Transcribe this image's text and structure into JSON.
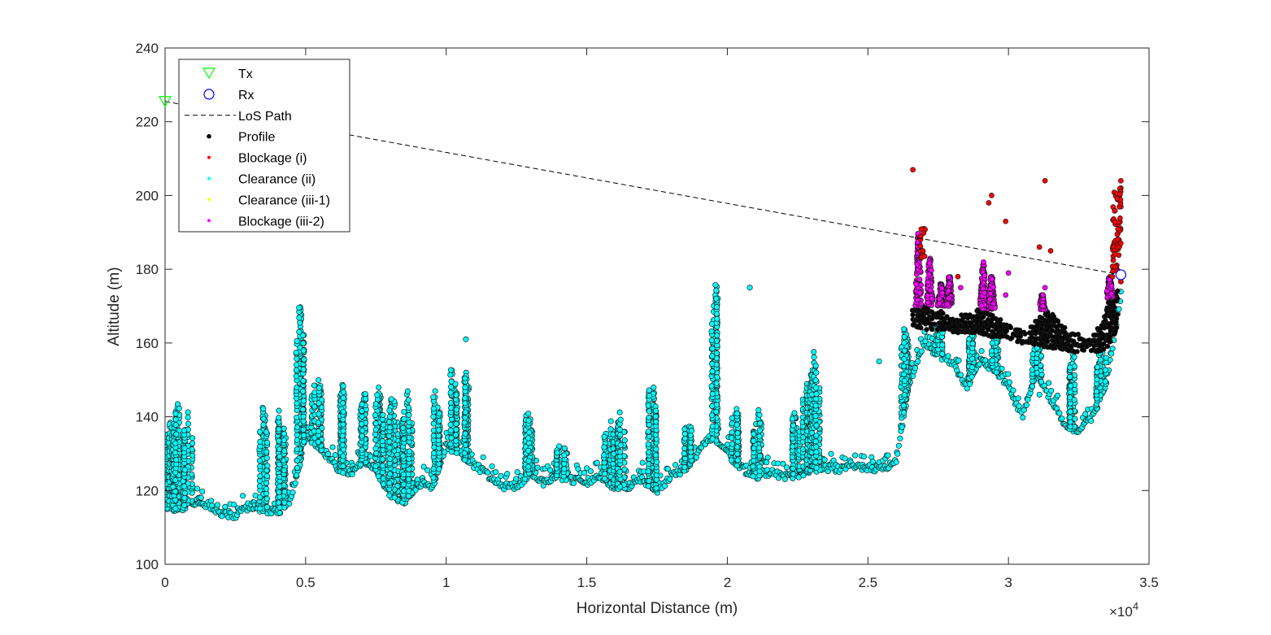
{
  "chart_data": {
    "type": "scatter",
    "xlabel": "Horizontal Distance (m)",
    "ylabel": "Altitude (m)",
    "x_multiplier_label": "×10",
    "x_multiplier_exponent": "4",
    "xlim": [
      0,
      35000
    ],
    "ylim": [
      100,
      240
    ],
    "x_tick_values": [
      0,
      5000,
      10000,
      15000,
      20000,
      25000,
      30000,
      35000
    ],
    "x_tick_labels": [
      "0",
      "0.5",
      "1",
      "1.5",
      "2",
      "2.5",
      "3",
      "3.5"
    ],
    "y_tick_values": [
      100,
      120,
      140,
      160,
      180,
      200,
      220,
      240
    ],
    "y_tick_labels": [
      "100",
      "120",
      "140",
      "160",
      "180",
      "200",
      "220",
      "240"
    ],
    "grid": false,
    "legend_position": "top-left",
    "tx": {
      "x": 0,
      "y": 225.5
    },
    "rx": {
      "x": 34000,
      "y": 178.5
    },
    "los_path": {
      "x": [
        0,
        34000
      ],
      "y": [
        225.5,
        178.5
      ]
    },
    "legend": [
      {
        "key": "tx",
        "label": "Tx",
        "marker": "triangle-down",
        "color": "#00ff00"
      },
      {
        "key": "rx",
        "label": "Rx",
        "marker": "circle-open",
        "color": "#0000ff"
      },
      {
        "key": "los",
        "label": "LoS Path",
        "marker": "dashed-line",
        "color": "#000000"
      },
      {
        "key": "profile",
        "label": "Profile",
        "marker": "dot",
        "color": "#000000"
      },
      {
        "key": "block_i",
        "label": "Blockage (i)",
        "marker": "dot",
        "color": "#ff0000"
      },
      {
        "key": "clear_ii",
        "label": "Clearance (ii)",
        "marker": "dot",
        "color": "#00ffff"
      },
      {
        "key": "clear_iii1",
        "label": "Clearance (iii-1)",
        "marker": "dot",
        "color": "#ffff00"
      },
      {
        "key": "block_iii2",
        "label": "Blockage (iii-2)",
        "marker": "dot",
        "color": "#ff00ff"
      }
    ],
    "terrain_baseline": {
      "x": [
        0,
        500,
        1000,
        1500,
        2000,
        2500,
        3000,
        3500,
        4000,
        4500,
        5000,
        5500,
        6000,
        6500,
        7000,
        7500,
        8000,
        8500,
        9000,
        9500,
        10000,
        10500,
        11000,
        11500,
        12000,
        12500,
        13000,
        13500,
        14000,
        14500,
        15000,
        15500,
        16000,
        16500,
        17000,
        17500,
        18000,
        18500,
        19000,
        19500,
        20000,
        20500,
        21000,
        21500,
        22000,
        22500,
        23000,
        23500,
        24000,
        24500,
        25000,
        25500,
        26000,
        26500,
        27000,
        27500,
        28000,
        28500,
        29000,
        29500,
        30000,
        30500,
        31000,
        31500,
        32000,
        32500,
        33000,
        33500,
        34000
      ],
      "y": [
        116,
        115,
        117,
        116,
        114,
        113,
        116,
        115,
        114,
        118,
        135,
        132,
        127,
        124,
        128,
        126,
        119,
        117,
        122,
        121,
        132,
        130,
        127,
        124,
        121,
        121,
        125,
        122,
        124,
        123,
        122,
        124,
        121,
        121,
        123,
        120,
        124,
        126,
        131,
        135,
        130,
        126,
        124,
        125,
        124,
        124,
        126,
        126,
        126,
        127,
        126,
        126,
        128,
        150,
        160,
        157,
        155,
        148,
        155,
        153,
        148,
        140,
        152,
        145,
        138,
        136,
        140,
        150,
        172
      ]
    },
    "clearance_spikes": [
      {
        "x": 200,
        "top": 140
      },
      {
        "x": 450,
        "top": 145
      },
      {
        "x": 800,
        "top": 142
      },
      {
        "x": 3500,
        "top": 143
      },
      {
        "x": 4100,
        "top": 143
      },
      {
        "x": 4800,
        "top": 171
      },
      {
        "x": 5400,
        "top": 152
      },
      {
        "x": 6300,
        "top": 149
      },
      {
        "x": 7100,
        "top": 147
      },
      {
        "x": 7600,
        "top": 148
      },
      {
        "x": 8100,
        "top": 148
      },
      {
        "x": 8600,
        "top": 148
      },
      {
        "x": 9600,
        "top": 147
      },
      {
        "x": 10200,
        "top": 154
      },
      {
        "x": 10700,
        "top": 152
      },
      {
        "x": 12900,
        "top": 142
      },
      {
        "x": 14100,
        "top": 134
      },
      {
        "x": 15800,
        "top": 140
      },
      {
        "x": 16200,
        "top": 142
      },
      {
        "x": 17300,
        "top": 152
      },
      {
        "x": 18600,
        "top": 139
      },
      {
        "x": 19600,
        "top": 176
      },
      {
        "x": 20300,
        "top": 143
      },
      {
        "x": 21100,
        "top": 142
      },
      {
        "x": 22400,
        "top": 142
      },
      {
        "x": 22800,
        "top": 150
      },
      {
        "x": 23100,
        "top": 158
      },
      {
        "x": 26300,
        "top": 165
      },
      {
        "x": 27500,
        "top": 166
      },
      {
        "x": 28700,
        "top": 163
      },
      {
        "x": 29600,
        "top": 163
      },
      {
        "x": 31000,
        "top": 160
      },
      {
        "x": 32300,
        "top": 158
      },
      {
        "x": 33300,
        "top": 158
      }
    ],
    "clearance_outliers": {
      "x": [
        20800,
        25400,
        10700,
        31100
      ],
      "y": [
        175,
        155,
        161,
        146
      ]
    },
    "profile_band": {
      "x": [
        26600,
        27000,
        27400,
        27800,
        28200,
        28600,
        29000,
        29400,
        29800,
        30200,
        30600,
        31000,
        31400,
        31800,
        32200,
        32600,
        33000,
        33300,
        33600,
        33900
      ],
      "bottom": [
        165,
        164,
        164,
        164,
        163,
        163,
        163,
        162,
        162,
        161,
        160,
        160,
        159,
        159,
        158,
        158,
        158,
        158,
        160,
        165
      ],
      "top": [
        170,
        170,
        169,
        168,
        167,
        168,
        169,
        168,
        166,
        164,
        163,
        166,
        169,
        166,
        163,
        162,
        162,
        166,
        172,
        175
      ]
    },
    "blockage_i": {
      "x": [
        26600,
        27000,
        28200,
        29300,
        29400,
        29900,
        31100,
        31300,
        31500,
        33700,
        33800,
        33900,
        33950,
        34000,
        34000
      ],
      "y": [
        207,
        191,
        178,
        198,
        200,
        193,
        186,
        204,
        185,
        178,
        185,
        192,
        199,
        202,
        204
      ]
    },
    "blockage_iii2": {
      "clusters": [
        {
          "x": 26800,
          "bottom": 170,
          "top": 190
        },
        {
          "x": 27200,
          "bottom": 170,
          "top": 183
        },
        {
          "x": 27600,
          "bottom": 170,
          "top": 176
        },
        {
          "x": 27900,
          "bottom": 170,
          "top": 178
        },
        {
          "x": 29100,
          "bottom": 169,
          "top": 182
        },
        {
          "x": 29400,
          "bottom": 169,
          "top": 178
        },
        {
          "x": 31200,
          "bottom": 169,
          "top": 173
        },
        {
          "x": 33600,
          "bottom": 172,
          "top": 178
        }
      ],
      "isolated": {
        "x": [
          30000,
          29900,
          28300,
          31300
        ],
        "y": [
          179,
          173,
          175,
          175
        ]
      }
    }
  }
}
